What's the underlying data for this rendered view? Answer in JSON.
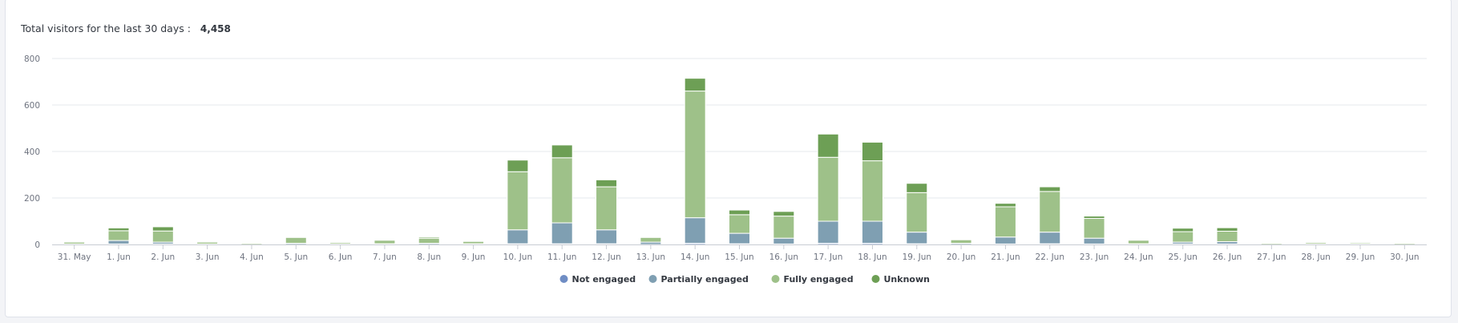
{
  "summary": {
    "label": "Total visitors for the last 30 days :",
    "value": "4,458"
  },
  "chart_data": {
    "type": "bar",
    "stacked": true,
    "title": "",
    "xlabel": "",
    "ylabel": "",
    "ylim": [
      0,
      800
    ],
    "yticks": [
      0,
      200,
      400,
      600,
      800
    ],
    "categories": [
      "31. May",
      "1. Jun",
      "2. Jun",
      "3. Jun",
      "4. Jun",
      "5. Jun",
      "6. Jun",
      "7. Jun",
      "8. Jun",
      "9. Jun",
      "10. Jun",
      "11. Jun",
      "12. Jun",
      "13. Jun",
      "14. Jun",
      "15. Jun",
      "16. Jun",
      "17. Jun",
      "18. Jun",
      "19. Jun",
      "20. Jun",
      "21. Jun",
      "22. Jun",
      "23. Jun",
      "24. Jun",
      "25. Jun",
      "26. Jun",
      "27. Jun",
      "28. Jun",
      "29. Jun",
      "30. Jun"
    ],
    "series": [
      {
        "name": "Not engaged",
        "color": "#6f8dc4",
        "values": [
          0,
          2,
          2,
          0,
          0,
          0,
          0,
          0,
          0,
          0,
          3,
          3,
          3,
          0,
          5,
          3,
          2,
          5,
          5,
          3,
          0,
          2,
          3,
          2,
          0,
          2,
          2,
          0,
          0,
          0,
          0
        ]
      },
      {
        "name": "Partially engaged",
        "color": "#7f9fb2",
        "values": [
          2,
          15,
          8,
          2,
          0,
          5,
          2,
          3,
          5,
          3,
          60,
          90,
          60,
          10,
          110,
          45,
          25,
          95,
          95,
          50,
          5,
          30,
          50,
          25,
          3,
          8,
          10,
          0,
          2,
          2,
          0
        ]
      },
      {
        "name": "Fully engaged",
        "color": "#9ec189",
        "values": [
          8,
          42,
          48,
          8,
          5,
          25,
          6,
          15,
          22,
          10,
          250,
          280,
          185,
          20,
          545,
          80,
          95,
          275,
          260,
          170,
          15,
          130,
          175,
          85,
          15,
          45,
          45,
          5,
          6,
          5,
          5
        ]
      },
      {
        "name": "Unknown",
        "color": "#6d9f55",
        "values": [
          0,
          12,
          18,
          0,
          0,
          0,
          0,
          0,
          5,
          0,
          50,
          55,
          30,
          0,
          55,
          20,
          20,
          100,
          80,
          40,
          0,
          15,
          20,
          10,
          0,
          15,
          15,
          0,
          0,
          0,
          0
        ]
      }
    ],
    "legend": "bottom-center",
    "grid": true
  }
}
